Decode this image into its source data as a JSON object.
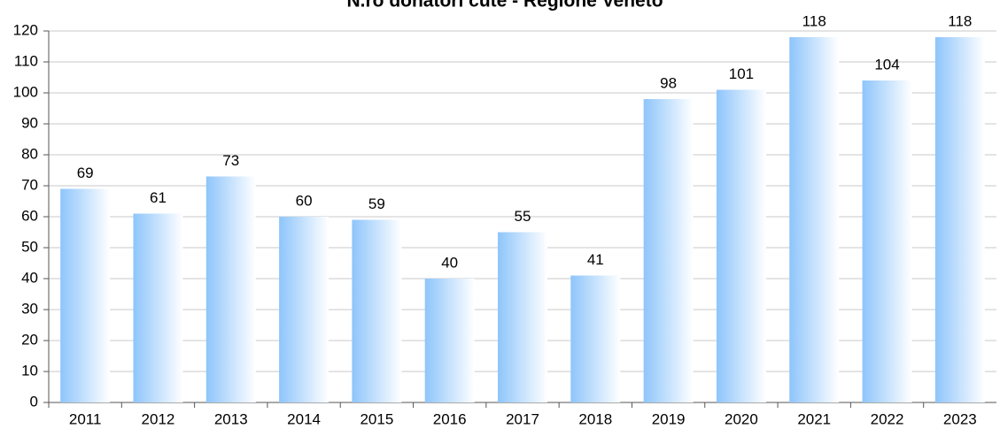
{
  "chart_data": {
    "type": "bar",
    "title": "N.ro donatori cute - Regione Veneto",
    "categories": [
      "2011",
      "2012",
      "2013",
      "2014",
      "2015",
      "2016",
      "2017",
      "2018",
      "2019",
      "2020",
      "2021",
      "2022",
      "2023"
    ],
    "values": [
      69,
      61,
      73,
      60,
      59,
      40,
      55,
      41,
      98,
      101,
      118,
      104,
      118
    ],
    "color": "#8ec5fb",
    "ylim": [
      0,
      120
    ],
    "yticks": [
      0,
      10,
      20,
      30,
      40,
      50,
      60,
      70,
      80,
      90,
      100,
      110,
      120
    ],
    "grid": true
  }
}
